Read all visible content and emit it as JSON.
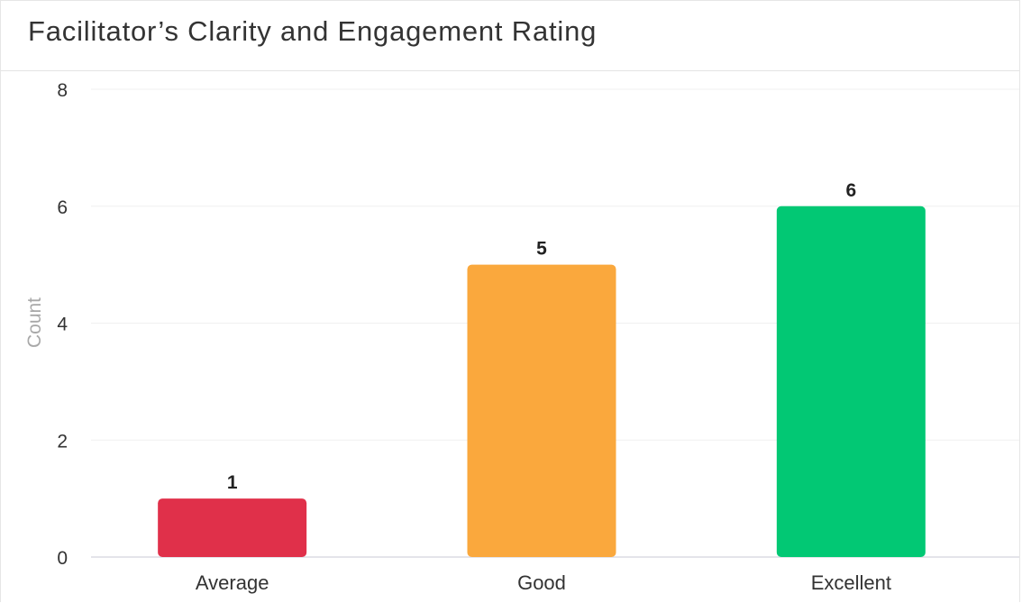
{
  "card": {
    "title": "Facilitator’s Clarity and Engagement Rating"
  },
  "chart_data": {
    "type": "bar",
    "title": "Facilitator’s Clarity and Engagement Rating",
    "categories": [
      "Average",
      "Good",
      "Excellent"
    ],
    "values": [
      1,
      5,
      6
    ],
    "colors": [
      "#e0304a",
      "#faa83d",
      "#02c874"
    ],
    "xlabel": "",
    "ylabel": "Count",
    "ylim": [
      0,
      8
    ],
    "yticks": [
      0,
      2,
      4,
      6,
      8
    ],
    "grid": true,
    "data_labels": true,
    "legend": "none"
  }
}
